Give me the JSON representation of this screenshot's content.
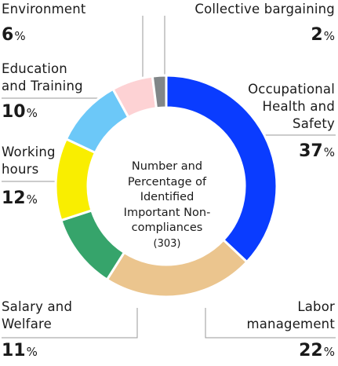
{
  "chart_data": {
    "type": "pie",
    "center_label": "Number and Percentage of Identified Important Non-compliances",
    "center_sub": "(303)",
    "slices": [
      {
        "label": "Occupational Health and Safety",
        "value": 37,
        "color": "#0a3cff"
      },
      {
        "label": "Labor management",
        "value": 22,
        "color": "#ebc58e"
      },
      {
        "label": "Salary and Welfare",
        "value": 11,
        "color": "#36a46b"
      },
      {
        "label": "Working hours",
        "value": 12,
        "color": "#f9ee00"
      },
      {
        "label": "Education and Training",
        "value": 10,
        "color": "#6cc8f8"
      },
      {
        "label": "Environment",
        "value": 6,
        "color": "#fdd2d4"
      },
      {
        "label": "Collective bargaining",
        "value": 2,
        "color": "#818688"
      }
    ]
  },
  "labels": {
    "ohs": [
      "Occupational",
      "Health and",
      "Safety"
    ],
    "ohs_pct": "37",
    "labor": [
      "Labor",
      "management"
    ],
    "labor_pct": "22",
    "salary": [
      "Salary and",
      "Welfare"
    ],
    "salary_pct": "11",
    "hours": [
      "Working",
      "hours"
    ],
    "hours_pct": "12",
    "edu": [
      "Education",
      "and Training"
    ],
    "edu_pct": "10",
    "env": [
      "Environment"
    ],
    "env_pct": "6",
    "cb": [
      "Collective bargaining"
    ],
    "cb_pct": "2",
    "percent_sign": "%"
  }
}
